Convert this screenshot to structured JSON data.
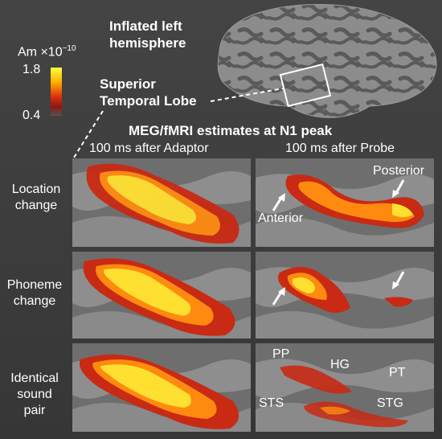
{
  "brain": {
    "title_line1": "Inflated left",
    "title_line2": "hemisphere",
    "region_line1": "Superior",
    "region_line2": "Temporal Lobe"
  },
  "colorbar": {
    "unit": "Am ×10",
    "exponent": "−10",
    "max": "1.8",
    "min": "0.4",
    "colors": [
      "#ffff40",
      "#ffb000",
      "#e03010",
      "#8a1810",
      "#555555"
    ]
  },
  "header": {
    "title": "MEG/fMRI estimates at N1 peak",
    "col_left": "100 ms after Adaptor",
    "col_right": "100 ms after Probe"
  },
  "rows": [
    {
      "line1": "Location",
      "line2": "change",
      "line3": ""
    },
    {
      "line1": "Phoneme",
      "line2": "change",
      "line3": ""
    },
    {
      "line1": "Identical",
      "line2": "sound",
      "line3": "pair"
    }
  ],
  "annotations": {
    "posterior": "Posterior",
    "anterior": "Anterior",
    "pp": "PP",
    "hg": "HG",
    "pt": "PT",
    "sts": "STS",
    "stg": "STG"
  }
}
